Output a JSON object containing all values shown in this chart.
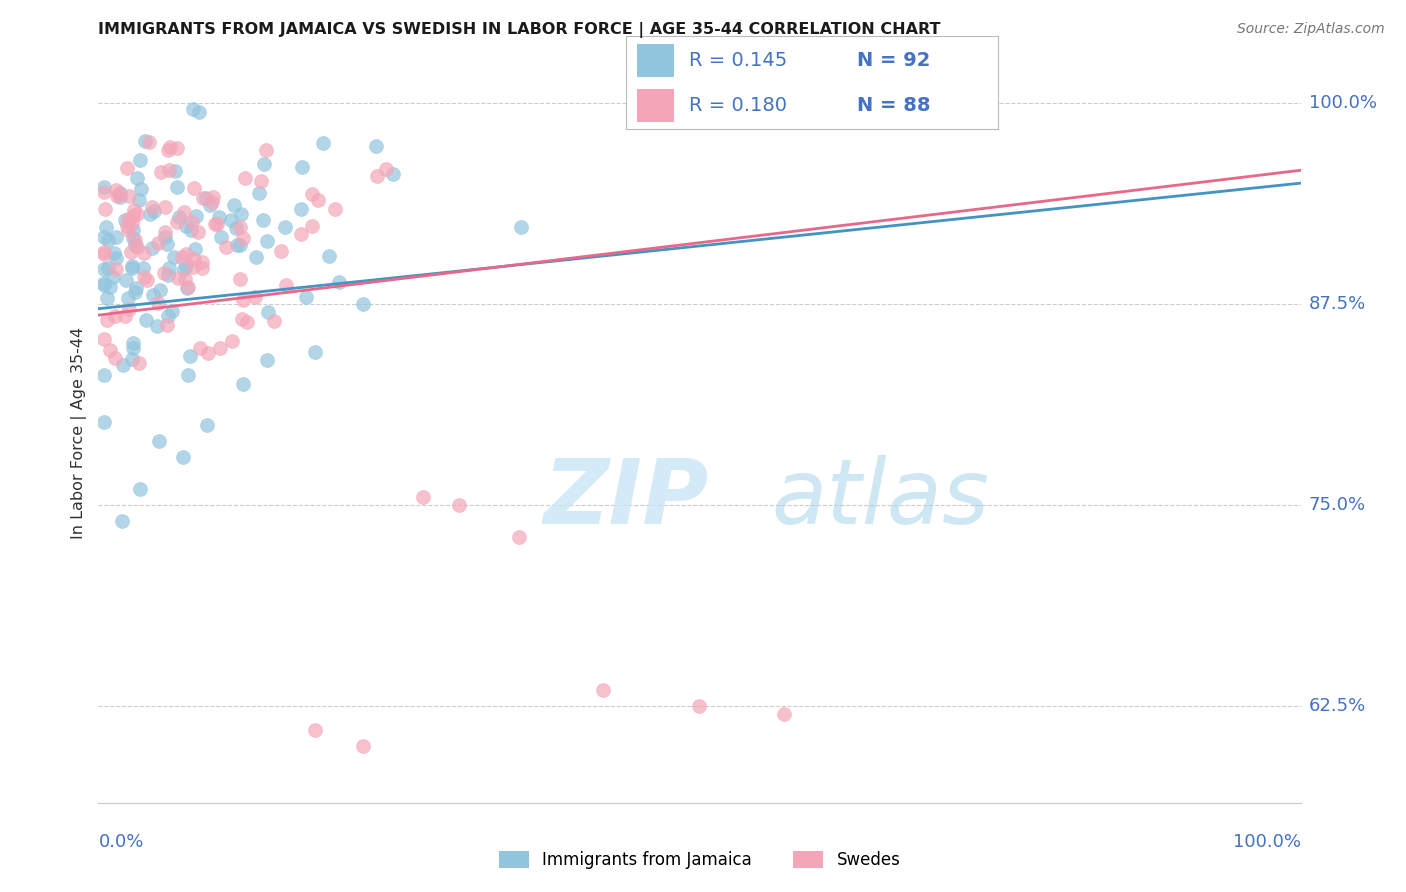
{
  "title": "IMMIGRANTS FROM JAMAICA VS SWEDISH IN LABOR FORCE | AGE 35-44 CORRELATION CHART",
  "source": "Source: ZipAtlas.com",
  "ylabel": "In Labor Force | Age 35-44",
  "ytick_labels": [
    "100.0%",
    "87.5%",
    "75.0%",
    "62.5%"
  ],
  "ytick_values": [
    1.0,
    0.875,
    0.75,
    0.625
  ],
  "xmin": 0.0,
  "xmax": 1.0,
  "ymin": 0.565,
  "ymax": 1.025,
  "blue_R": 0.145,
  "blue_N": 92,
  "pink_R": 0.18,
  "pink_N": 88,
  "blue_color": "#92c5de",
  "pink_color": "#f4a6b8",
  "blue_line_color": "#4393c3",
  "pink_line_color": "#e8688a",
  "legend_label_blue": "Immigrants from Jamaica",
  "legend_label_pink": "Swedes",
  "R_N_color": "#4472c4",
  "axis_label_color": "#4472c4",
  "title_color": "#1a1a1a",
  "source_color": "#777777",
  "grid_color": "#cccccc",
  "blue_trend_start_y": 0.872,
  "blue_trend_end_y": 0.95,
  "pink_trend_start_y": 0.868,
  "pink_trend_end_y": 0.958
}
